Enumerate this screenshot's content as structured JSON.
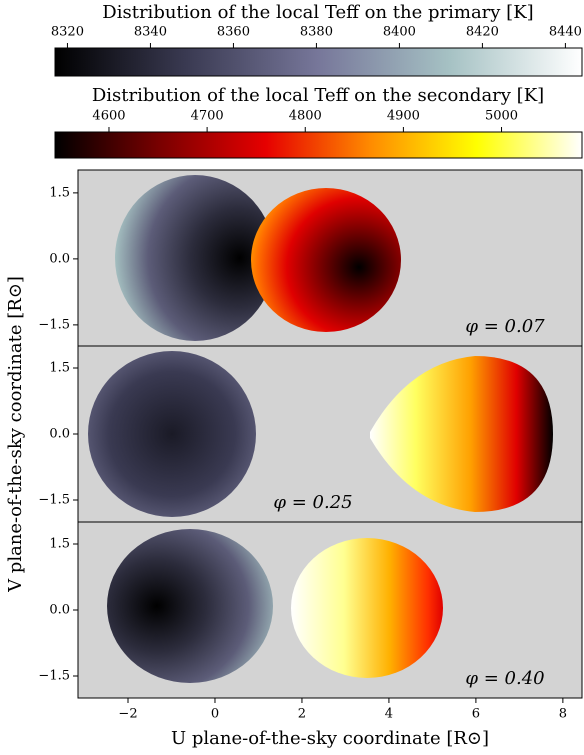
{
  "chart_data": [
    {
      "type": "colorbar",
      "title": "Distribution of the local Teff on the primary [K]",
      "xlim": [
        8317,
        8444
      ],
      "xticks": [
        8320,
        8340,
        8360,
        8380,
        8400,
        8420,
        8440
      ],
      "colors": [
        "#000000",
        "#3a3a52",
        "#77779a",
        "#a6c2c4",
        "#ffffff"
      ]
    },
    {
      "type": "colorbar",
      "title": "Distribution of the local Teff on the secondary [K]",
      "xlim": [
        4545,
        5082
      ],
      "xticks": [
        4600,
        4700,
        4800,
        4900,
        5000
      ],
      "colors": [
        "#000000",
        "#7a0000",
        "#e60000",
        "#ff8c00",
        "#ffff00",
        "#ffffff"
      ]
    },
    {
      "type": "image",
      "annotation": "φ = 0.07",
      "xlim": [
        -3.15,
        8.44
      ],
      "ylim": [
        -1.98,
        2.02
      ],
      "yticks": [
        1.5,
        {
          "value": 0,
          "label": "0.0"
        },
        {
          "value": -1.5,
          "label": "−1.5"
        }
      ]
    },
    {
      "type": "image",
      "annotation": "φ = 0.25",
      "xlim": [
        -3.15,
        8.44
      ],
      "ylim": [
        -2.0,
        2.0
      ],
      "yticks": [
        1.5,
        {
          "value": 0,
          "label": "0.0"
        },
        {
          "value": -1.5,
          "label": "−1.5"
        }
      ],
      "ylabel": "V plane-of-the-sky coordinate [R⊙]"
    },
    {
      "type": "image",
      "annotation": "φ = 0.40",
      "xlim": [
        -3.15,
        8.44
      ],
      "ylim": [
        -2.0,
        2.0
      ],
      "yticks": [
        1.5,
        {
          "value": 0,
          "label": "0.0"
        },
        {
          "value": -1.5,
          "label": "−1.5"
        }
      ],
      "xticks": [
        {
          "value": -2,
          "label": "−2"
        },
        0,
        2,
        4,
        6,
        8
      ],
      "xlabel": "U plane-of-the-sky coordinate [R⊙]"
    }
  ]
}
